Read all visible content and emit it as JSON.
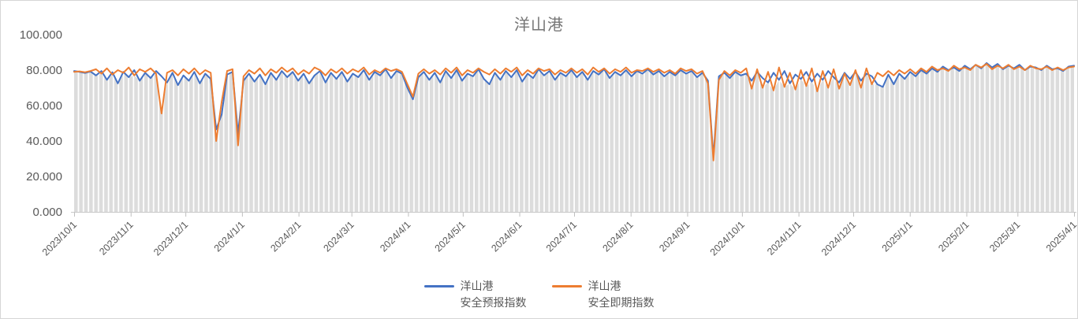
{
  "chart_data": {
    "type": "line",
    "title": "洋山港",
    "title_color": "#767676",
    "text_color": "#595959",
    "axis_line_color": "#c9c9c9",
    "tick_color": "#bfbfbf",
    "grid": "vertical-stripes",
    "legend_position": "bottom-center",
    "x_axis": {
      "start_date": "2023/10/1",
      "end_date": "2025/4/1",
      "total_days": 548,
      "tick_labels": [
        "2023/10/1",
        "2023/11/1",
        "2023/12/1",
        "2024/1/1",
        "2024/2/1",
        "2024/3/1",
        "2024/4/1",
        "2024/5/1",
        "2024/6/1",
        "2024/7/1",
        "2024/8/1",
        "2024/9/1",
        "2024/10/1",
        "2024/11/1",
        "2024/12/1",
        "2025/1/1",
        "2025/2/1",
        "2025/3/1",
        "2025/4/1"
      ],
      "tick_days": [
        0,
        31,
        61,
        92,
        123,
        152,
        183,
        213,
        244,
        274,
        305,
        336,
        366,
        397,
        427,
        458,
        489,
        517,
        548
      ]
    },
    "y_axis": {
      "min": 0,
      "max": 100,
      "tick_values": [
        0,
        20,
        40,
        60,
        80,
        100
      ],
      "tick_labels": [
        "0.000",
        "20.000",
        "40.000",
        "60.000",
        "80.000",
        "100.000"
      ]
    },
    "area_fill": {
      "color": "#dcdcdc",
      "stripe_color": "#ffffff",
      "follows": "min-of-series"
    },
    "series": [
      {
        "name": "洋山港安全预报指数",
        "legend": [
          "洋山港",
          "安全预报指数"
        ],
        "color": "#4472C4",
        "values": [
          79.5,
          79.0,
          78.4,
          79.2,
          77.0,
          79.5,
          74.5,
          78.8,
          72.5,
          79.0,
          76.0,
          80.0,
          74.0,
          78.5,
          75.5,
          79.5,
          76.5,
          73.0,
          78.5,
          71.5,
          77.0,
          74.0,
          79.0,
          72.5,
          78.0,
          75.0,
          46.5,
          55.0,
          77.5,
          79.0,
          44.0,
          74.0,
          78.0,
          73.5,
          77.5,
          72.0,
          78.5,
          74.5,
          79.5,
          76.0,
          79.0,
          74.0,
          78.0,
          72.5,
          77.0,
          79.5,
          73.0,
          78.5,
          75.0,
          79.0,
          73.5,
          78.0,
          76.0,
          80.0,
          74.5,
          79.0,
          77.0,
          80.5,
          75.5,
          79.5,
          78.0,
          70.0,
          63.5,
          76.0,
          79.0,
          74.5,
          78.5,
          73.0,
          79.5,
          75.5,
          80.0,
          74.0,
          78.0,
          76.5,
          80.5,
          75.0,
          72.0,
          78.5,
          74.5,
          79.5,
          76.0,
          80.0,
          73.5,
          78.0,
          75.5,
          80.5,
          77.0,
          79.5,
          74.5,
          78.5,
          76.5,
          80.0,
          76.0,
          79.0,
          74.5,
          79.5,
          77.5,
          80.5,
          75.5,
          79.0,
          77.0,
          80.0,
          76.5,
          79.5,
          78.0,
          80.5,
          77.5,
          79.5,
          76.5,
          79.0,
          77.0,
          80.0,
          78.0,
          79.5,
          76.0,
          78.5,
          74.0,
          31.0,
          76.5,
          78.5,
          75.5,
          79.0,
          77.0,
          78.0,
          74.0,
          79.0,
          75.5,
          73.0,
          78.5,
          74.5,
          79.5,
          72.5,
          77.5,
          75.0,
          79.0,
          73.5,
          78.0,
          74.5,
          79.5,
          76.0,
          73.0,
          78.5,
          75.0,
          79.0,
          74.0,
          78.0,
          76.5,
          72.0,
          70.5,
          77.5,
          72.0,
          78.0,
          75.0,
          79.0,
          76.5,
          80.0,
          78.0,
          81.0,
          79.0,
          82.0,
          80.0,
          81.5,
          79.5,
          82.5,
          80.5,
          83.0,
          81.0,
          84.0,
          81.5,
          83.5,
          80.5,
          82.5,
          81.0,
          83.0,
          80.0,
          82.0,
          81.5,
          80.0,
          82.5,
          80.5,
          81.0,
          79.5,
          82.0,
          82.5
        ]
      },
      {
        "name": "洋山港安全即期指数",
        "legend": [
          "洋山港",
          "安全即期指数"
        ],
        "color": "#ED7D31",
        "values": [
          79.0,
          79.3,
          78.8,
          79.5,
          80.5,
          78.0,
          81.0,
          77.5,
          80.0,
          78.5,
          81.5,
          77.0,
          80.5,
          79.0,
          81.0,
          78.0,
          55.5,
          78.5,
          80.0,
          77.0,
          80.5,
          78.0,
          81.0,
          77.5,
          80.0,
          78.5,
          40.0,
          62.0,
          79.5,
          80.5,
          37.5,
          76.5,
          80.0,
          78.0,
          81.0,
          77.0,
          80.5,
          78.5,
          81.5,
          79.0,
          81.0,
          77.5,
          80.0,
          78.0,
          81.5,
          80.0,
          77.0,
          80.5,
          78.5,
          81.0,
          78.0,
          80.5,
          79.0,
          81.5,
          77.5,
          80.0,
          78.5,
          81.0,
          79.5,
          80.5,
          79.0,
          72.0,
          65.0,
          78.0,
          80.5,
          78.0,
          80.0,
          77.5,
          81.0,
          78.5,
          81.5,
          77.0,
          80.0,
          78.5,
          81.0,
          79.0,
          77.5,
          80.5,
          78.0,
          81.0,
          79.0,
          81.5,
          77.0,
          80.0,
          78.0,
          81.0,
          79.5,
          80.5,
          77.5,
          80.0,
          78.5,
          81.0,
          78.5,
          80.5,
          77.5,
          81.5,
          79.0,
          81.0,
          78.0,
          80.5,
          79.0,
          81.5,
          78.5,
          80.0,
          79.5,
          81.0,
          79.0,
          80.5,
          78.5,
          80.0,
          78.0,
          81.0,
          79.5,
          80.5,
          78.0,
          79.5,
          72.5,
          29.0,
          74.5,
          79.5,
          77.0,
          80.0,
          78.5,
          81.0,
          69.5,
          80.5,
          70.0,
          79.0,
          68.5,
          81.5,
          70.5,
          78.5,
          69.0,
          80.0,
          71.0,
          81.0,
          68.0,
          79.5,
          70.0,
          80.5,
          69.5,
          78.0,
          71.5,
          80.0,
          70.0,
          81.0,
          72.0,
          78.5,
          76.5,
          79.5,
          77.0,
          80.0,
          78.0,
          80.5,
          78.0,
          81.0,
          79.0,
          82.0,
          80.0,
          81.0,
          79.5,
          82.5,
          80.5,
          81.5,
          80.0,
          83.0,
          81.5,
          83.5,
          80.5,
          82.5,
          81.0,
          83.0,
          80.5,
          82.0,
          80.0,
          82.5,
          81.0,
          80.5,
          82.0,
          80.0,
          81.5,
          80.0,
          81.5,
          82.0
        ]
      }
    ]
  }
}
